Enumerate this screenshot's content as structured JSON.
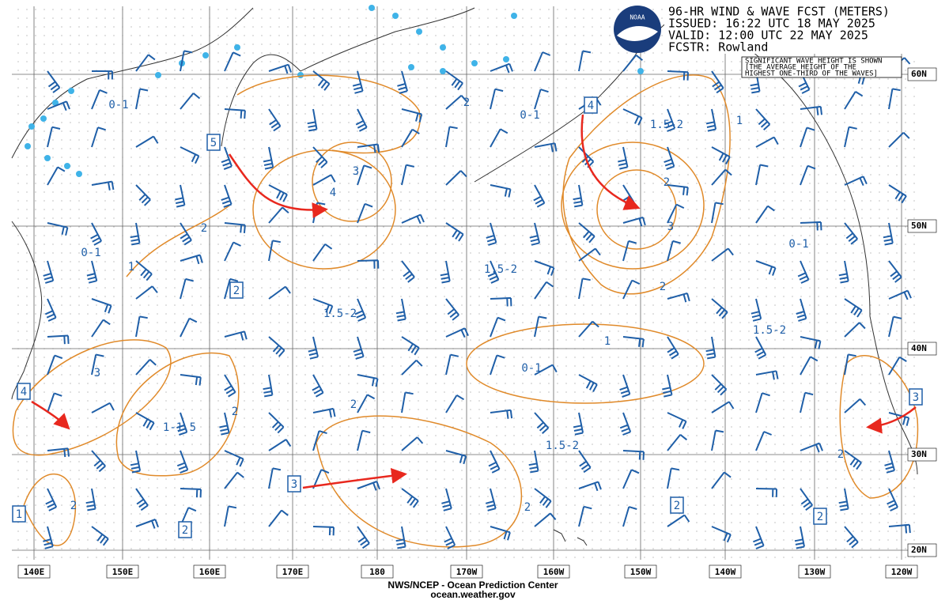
{
  "header": {
    "logo": "NOAA",
    "lines": [
      "96-HR WIND & WAVE FCST (METERS)",
      "ISSUED: 16:22 UTC 18 MAY 2025",
      "VALID:  12:00 UTC 22 MAY 2025",
      "FCSTR: Rowland"
    ]
  },
  "note": [
    "SIGNIFICANT WAVE HEIGHT IS SHOWN",
    "[THE AVERAGE HEIGHT OF THE",
    "HIGHEST ONE-THIRD OF THE WAVES]"
  ],
  "lat_labels": [
    "60N",
    "50N",
    "40N",
    "30N",
    "20N"
  ],
  "lon_labels": [
    "140E",
    "150E",
    "160E",
    "170E",
    "180",
    "170W",
    "160W",
    "150W",
    "140W",
    "130W",
    "120W"
  ],
  "wave_labels": [
    "0-1",
    "2",
    "0-1",
    "1.5-2",
    "1",
    "3",
    "4",
    "2",
    "2",
    "3",
    "0-1",
    "0-1",
    "1",
    "1.5-2",
    "2",
    "1.5-2",
    "1.5-2",
    "1",
    "0-1",
    "3",
    "2",
    "2",
    "1-1.5",
    "1.5-2",
    "2",
    "2",
    "2"
  ],
  "boxes": [
    "5",
    "4",
    "2",
    "4",
    "3",
    "3",
    "1",
    "2",
    "2",
    "2"
  ],
  "footer": [
    "NWS/NCEP - Ocean Prediction Center",
    "ocean.weather.gov"
  ]
}
